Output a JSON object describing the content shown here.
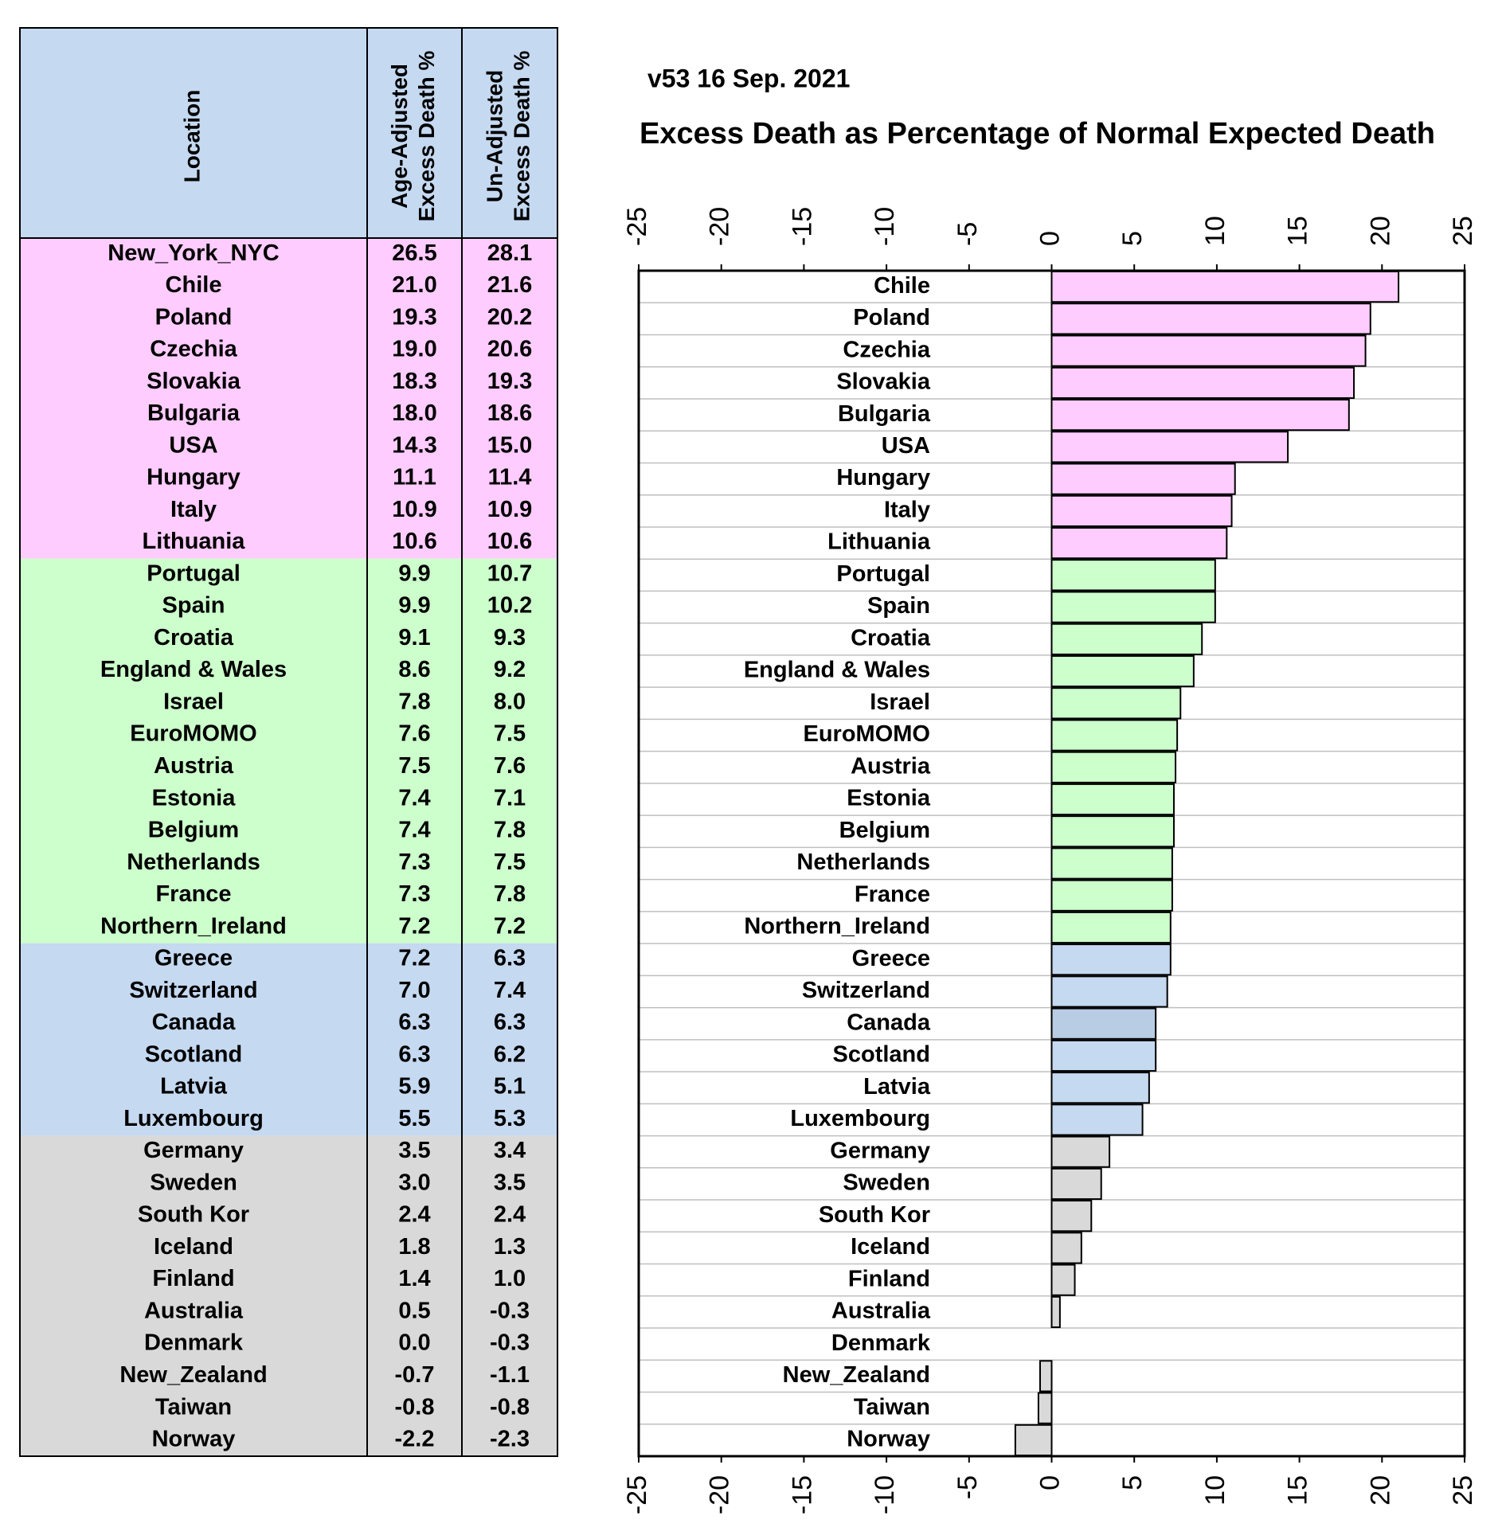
{
  "table": {
    "header": [
      "Location",
      [
        "Age-Adjusted",
        "Excess Death %"
      ],
      [
        "Un-Adjusted",
        "Excess Death %"
      ]
    ],
    "header_color": "#c5d9f1",
    "groups": [
      {
        "color": "#ffccff",
        "rows": [
          [
            "New_York_NYC",
            "26.5",
            "28.1"
          ],
          [
            "Chile",
            "21.0",
            "21.6"
          ],
          [
            "Poland",
            "19.3",
            "20.2"
          ],
          [
            "Czechia",
            "19.0",
            "20.6"
          ],
          [
            "Slovakia",
            "18.3",
            "19.3"
          ],
          [
            "Bulgaria",
            "18.0",
            "18.6"
          ],
          [
            "USA",
            "14.3",
            "15.0"
          ],
          [
            "Hungary",
            "11.1",
            "11.4"
          ],
          [
            "Italy",
            "10.9",
            "10.9"
          ],
          [
            "Lithuania",
            "10.6",
            "10.6"
          ]
        ]
      },
      {
        "color": "#ccffcc",
        "rows": [
          [
            "Portugal",
            "9.9",
            "10.7"
          ],
          [
            "Spain",
            "9.9",
            "10.2"
          ],
          [
            "Croatia",
            "9.1",
            "9.3"
          ],
          [
            "England & Wales",
            "8.6",
            "9.2"
          ],
          [
            "Israel",
            "7.8",
            "8.0"
          ],
          [
            "EuroMOMO",
            "7.6",
            "7.5"
          ],
          [
            "Austria",
            "7.5",
            "7.6"
          ],
          [
            "Estonia",
            "7.4",
            "7.1"
          ],
          [
            "Belgium",
            "7.4",
            "7.8"
          ],
          [
            "Netherlands",
            "7.3",
            "7.5"
          ],
          [
            "France",
            "7.3",
            "7.8"
          ],
          [
            "Northern_Ireland",
            "7.2",
            "7.2"
          ]
        ]
      },
      {
        "color": "#c5d9f1",
        "rows": [
          [
            "Greece",
            "7.2",
            "6.3"
          ],
          [
            "Switzerland",
            "7.0",
            "7.4"
          ],
          [
            "Canada",
            "6.3",
            "6.3"
          ],
          [
            "Scotland",
            "6.3",
            "6.2"
          ],
          [
            "Latvia",
            "5.9",
            "5.1"
          ],
          [
            "Luxembourg",
            "5.5",
            "5.3"
          ]
        ]
      },
      {
        "color": "#d9d9d9",
        "rows": [
          [
            "Germany",
            "3.5",
            "3.4"
          ],
          [
            "Sweden",
            "3.0",
            "3.5"
          ],
          [
            "South Kor",
            "2.4",
            "2.4"
          ],
          [
            "Iceland",
            "1.8",
            "1.3"
          ],
          [
            "Finland",
            "1.4",
            "1.0"
          ],
          [
            "Australia",
            "0.5",
            "-0.3"
          ],
          [
            "Denmark",
            "0.0",
            "-0.3"
          ],
          [
            "New_Zealand",
            "-0.7",
            "-1.1"
          ],
          [
            "Taiwan",
            "-0.8",
            "-0.8"
          ],
          [
            "Norway",
            "-2.2",
            "-2.3"
          ]
        ]
      }
    ]
  },
  "chart_data": {
    "type": "bar",
    "orientation": "horizontal",
    "subtitle": "v53 16 Sep. 2021",
    "title": "Excess Death as Percentage of Normal Expected Death",
    "categories": [
      "Chile",
      "Poland",
      "Czechia",
      "Slovakia",
      "Bulgaria",
      "USA",
      "Hungary",
      "Italy",
      "Lithuania",
      "Portugal",
      "Spain",
      "Croatia",
      "England & Wales",
      "Israel",
      "EuroMOMO",
      "Austria",
      "Estonia",
      "Belgium",
      "Netherlands",
      "France",
      "Northern_Ireland",
      "Greece",
      "Switzerland",
      "Canada",
      "Scotland",
      "Latvia",
      "Luxembourg",
      "Germany",
      "Sweden",
      "South Kor",
      "Iceland",
      "Finland",
      "Australia",
      "Denmark",
      "New_Zealand",
      "Taiwan",
      "Norway"
    ],
    "values": [
      21.0,
      19.3,
      19.0,
      18.3,
      18.0,
      14.3,
      11.1,
      10.9,
      10.6,
      9.9,
      9.9,
      9.1,
      8.6,
      7.8,
      7.6,
      7.5,
      7.4,
      7.4,
      7.3,
      7.3,
      7.2,
      7.2,
      7.0,
      6.3,
      6.3,
      5.9,
      5.5,
      3.5,
      3.0,
      2.4,
      1.8,
      1.4,
      0.5,
      0.0,
      -0.7,
      -0.8,
      -2.2
    ],
    "colors": [
      "#ffccff",
      "#ffccff",
      "#ffccff",
      "#ffccff",
      "#ffccff",
      "#ffccff",
      "#ffccff",
      "#ffccff",
      "#ffccff",
      "#ccffcc",
      "#ccffcc",
      "#ccffcc",
      "#ccffcc",
      "#ccffcc",
      "#ccffcc",
      "#ccffcc",
      "#ccffcc",
      "#ccffcc",
      "#ccffcc",
      "#ccffcc",
      "#ccffcc",
      "#c5d9f1",
      "#c5d9f1",
      "#b8cce4",
      "#c5d9f1",
      "#c5d9f1",
      "#c5d9f1",
      "#d9d9d9",
      "#d9d9d9",
      "#d9d9d9",
      "#d9d9d9",
      "#d9d9d9",
      "#d9d9d9",
      "#d9d9d9",
      "#d9d9d9",
      "#d9d9d9",
      "#d9d9d9"
    ],
    "xlim": [
      -25,
      25
    ],
    "xticks": [
      -25,
      -20,
      -15,
      -10,
      -5,
      0,
      5,
      10,
      15,
      20,
      25
    ]
  }
}
